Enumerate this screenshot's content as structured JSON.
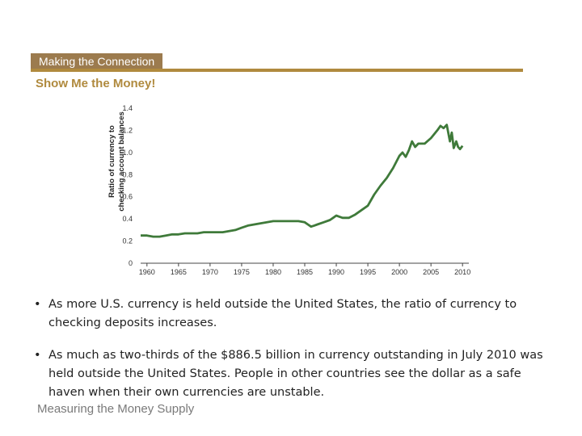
{
  "header": {
    "tab_label": "Making the Connection",
    "subtitle": "Show Me the Money!",
    "accent_color": "#b08a3e",
    "tab_color": "#9c7b4e"
  },
  "chart_data": {
    "type": "line",
    "title": "",
    "ylabel_line1": "Ratio of currency to",
    "ylabel_line2": "checking account balances",
    "xlabel": "",
    "xlim": [
      1959,
      2011
    ],
    "ylim": [
      0,
      1.4
    ],
    "x_ticks": [
      "1960",
      "1965",
      "1970",
      "1975",
      "1980",
      "1985",
      "1990",
      "1995",
      "2000",
      "2005",
      "2010"
    ],
    "y_ticks": [
      "0",
      "0.2",
      "0.4",
      "0.6",
      "0.8",
      "1.0",
      "1.2",
      "1.4"
    ],
    "line_color": "#3f7a3a",
    "series": [
      {
        "x": [
          1959,
          1960,
          1961,
          1962,
          1963,
          1964,
          1965,
          1966,
          1967,
          1968,
          1969,
          1970,
          1971,
          1972,
          1973,
          1974,
          1975,
          1976,
          1977,
          1978,
          1979,
          1980,
          1981,
          1982,
          1983,
          1984,
          1985,
          1985.5,
          1986,
          1986.5,
          1987,
          1988,
          1989,
          1989.5,
          1990,
          1990.5,
          1991,
          1992,
          1993,
          1994,
          1995,
          1996,
          1997,
          1998,
          1999,
          2000,
          2000.5,
          2001,
          2001.5,
          2002,
          2002.5,
          2003,
          2004,
          2005,
          2006,
          2006.5,
          2007,
          2007.5,
          2008,
          2008.3,
          2008.6,
          2009,
          2009.3,
          2009.6,
          2010
        ],
        "y": [
          0.25,
          0.25,
          0.24,
          0.24,
          0.25,
          0.26,
          0.26,
          0.27,
          0.27,
          0.27,
          0.28,
          0.28,
          0.28,
          0.28,
          0.29,
          0.3,
          0.32,
          0.34,
          0.35,
          0.36,
          0.37,
          0.38,
          0.38,
          0.38,
          0.38,
          0.38,
          0.37,
          0.35,
          0.33,
          0.34,
          0.35,
          0.37,
          0.39,
          0.41,
          0.43,
          0.42,
          0.41,
          0.41,
          0.44,
          0.48,
          0.52,
          0.62,
          0.7,
          0.77,
          0.86,
          0.97,
          1.0,
          0.96,
          1.02,
          1.1,
          1.05,
          1.08,
          1.08,
          1.13,
          1.2,
          1.24,
          1.22,
          1.25,
          1.1,
          1.18,
          1.04,
          1.1,
          1.05,
          1.03,
          1.06
        ]
      }
    ]
  },
  "bullets": [
    "As more U.S. currency is held outside the United States, the ratio of currency to checking deposits increases.",
    "As much as two-thirds of the $886.5 billion in currency outstanding in July 2010 was held outside the United States. People in other countries see the dollar as a safe haven when their own currencies are unstable."
  ],
  "bullet_symbol": "•",
  "footer": {
    "text": "Measuring the Money Supply"
  }
}
